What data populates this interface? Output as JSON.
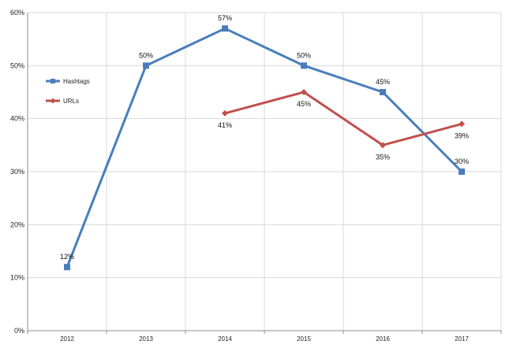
{
  "chart_data": {
    "type": "line",
    "categories": [
      "2012",
      "2013",
      "2014",
      "2015",
      "2016",
      "2017"
    ],
    "ylim": [
      0,
      60
    ],
    "yticks": [
      0,
      10,
      20,
      30,
      40,
      50,
      60
    ],
    "ytick_suffix": "%",
    "grid": true,
    "legend": "left",
    "series": [
      {
        "name": "Hashtags",
        "color": "#4a7ebb",
        "marker": "square",
        "values": [
          12,
          50,
          57,
          50,
          45,
          30
        ],
        "labels": [
          "12%",
          "50%",
          "57%",
          "50%",
          "45%",
          "30%"
        ]
      },
      {
        "name": "URLs",
        "color": "#c0504d",
        "marker": "diamond",
        "values": [
          null,
          null,
          41,
          45,
          35,
          39
        ],
        "labels": [
          null,
          null,
          "41%",
          "45%",
          "35%",
          "39%"
        ]
      }
    ]
  }
}
